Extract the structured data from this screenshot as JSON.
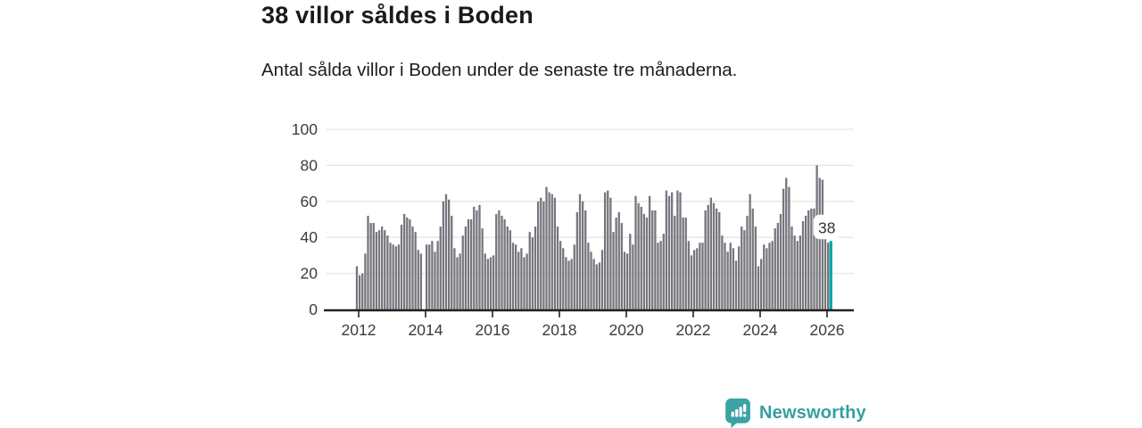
{
  "header": {
    "title": "38 villor såldes i Boden",
    "subtitle": "Antal sålda villor i Boden under de senaste tre månaderna."
  },
  "chart_data": {
    "type": "bar",
    "title": "38 villor såldes i Boden",
    "subtitle": "Antal sålda villor i Boden under de senaste tre månaderna.",
    "x_unit": "months",
    "x_start_year": 2012,
    "x_tick_labels": [
      "2012",
      "2014",
      "2016",
      "2018",
      "2020",
      "2022",
      "2024",
      "2026"
    ],
    "y_tick_labels": [
      "0",
      "20",
      "40",
      "60",
      "80",
      "100"
    ],
    "yticks": [
      0,
      20,
      40,
      60,
      80,
      100
    ],
    "ylim": [
      0,
      100
    ],
    "grid": true,
    "legend": "none",
    "bar_color": "#76767e",
    "highlight_color": "#00a5a5",
    "axis_color": "#222222",
    "grid_color": "#e6e6e6",
    "tick_label_color": "#3c3c3c",
    "highlight_index": "last",
    "annotation": {
      "text": "38",
      "target": "last-bar",
      "bg": "#ffffff",
      "color": "#333333"
    },
    "values": [
      24,
      19,
      20,
      31,
      52,
      48,
      48,
      43,
      44,
      46,
      44,
      41,
      37,
      36,
      35,
      36,
      47,
      53,
      51,
      50,
      46,
      43,
      33,
      31,
      null,
      36,
      36,
      38,
      32,
      38,
      46,
      60,
      64,
      61,
      52,
      34,
      29,
      31,
      41,
      46,
      50,
      50,
      57,
      55,
      58,
      45,
      31,
      28,
      29,
      30,
      53,
      55,
      52,
      50,
      46,
      44,
      37,
      36,
      32,
      34,
      29,
      31,
      43,
      40,
      46,
      60,
      62,
      60,
      68,
      65,
      64,
      62,
      46,
      38,
      34,
      29,
      27,
      28,
      36,
      54,
      64,
      60,
      55,
      37,
      32,
      28,
      25,
      26,
      33,
      65,
      66,
      62,
      43,
      51,
      54,
      48,
      32,
      31,
      42,
      36,
      63,
      59,
      57,
      53,
      51,
      63,
      55,
      55,
      37,
      38,
      42,
      66,
      63,
      65,
      52,
      66,
      65,
      51,
      51,
      38,
      30,
      33,
      34,
      37,
      37,
      55,
      58,
      62,
      59,
      56,
      54,
      41,
      37,
      32,
      37,
      34,
      27,
      35,
      46,
      44,
      52,
      64,
      56,
      46,
      24,
      28,
      36,
      34,
      37,
      38,
      45,
      48,
      53,
      67,
      73,
      68,
      46,
      41,
      38,
      41,
      49,
      52,
      55,
      56,
      56,
      80,
      73,
      72,
      43,
      37,
      38
    ]
  },
  "footer": {
    "brand": "Newsworthy",
    "brand_color": "#35a0a0",
    "logo_color": "#3aa3a3",
    "logo_icon": "bar-chart-speech-bubble-icon"
  }
}
